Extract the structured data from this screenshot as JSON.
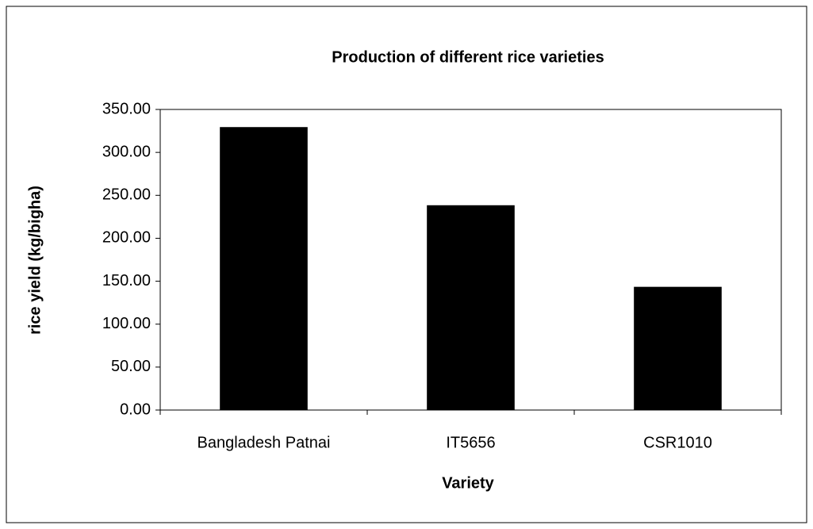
{
  "chart_data": {
    "type": "bar",
    "title": "Production of different rice varieties",
    "x_label": "Variety",
    "y_label": "rice yield (kg/bigha)",
    "categories": [
      "Bangladesh Patnai",
      "IT5656",
      "CSR1010"
    ],
    "values": [
      329,
      238,
      143
    ],
    "color": "#000000",
    "ylim": [
      0,
      350
    ],
    "yticks": [
      {
        "value": 0,
        "label": "0.00"
      },
      {
        "value": 50,
        "label": "50.00"
      },
      {
        "value": 100,
        "label": "100.00"
      },
      {
        "value": 150,
        "label": "150.00"
      },
      {
        "value": 200,
        "label": "200.00"
      },
      {
        "value": 250,
        "label": "250.00"
      },
      {
        "value": 300,
        "label": "300.00"
      },
      {
        "value": 350,
        "label": "350.00"
      }
    ],
    "grid": false
  }
}
